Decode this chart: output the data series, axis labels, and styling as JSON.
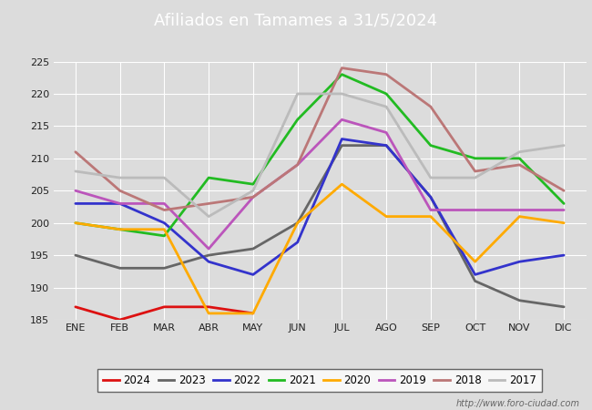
{
  "title": "Afiliados en Tamames a 31/5/2024",
  "months": [
    "ENE",
    "FEB",
    "MAR",
    "ABR",
    "MAY",
    "JUN",
    "JUL",
    "AGO",
    "SEP",
    "OCT",
    "NOV",
    "DIC"
  ],
  "series": {
    "2024": [
      187,
      185,
      187,
      187,
      186,
      null,
      null,
      null,
      null,
      null,
      null,
      null
    ],
    "2023": [
      195,
      193,
      193,
      195,
      196,
      200,
      212,
      212,
      204,
      191,
      188,
      187
    ],
    "2022": [
      203,
      203,
      200,
      194,
      192,
      197,
      213,
      212,
      204,
      192,
      194,
      195
    ],
    "2021": [
      200,
      199,
      198,
      207,
      206,
      216,
      223,
      220,
      212,
      210,
      210,
      203
    ],
    "2020": [
      200,
      199,
      199,
      186,
      186,
      200,
      206,
      201,
      201,
      194,
      201,
      200
    ],
    "2019": [
      205,
      203,
      203,
      196,
      204,
      209,
      216,
      214,
      202,
      202,
      202,
      202
    ],
    "2018": [
      211,
      205,
      202,
      203,
      204,
      209,
      224,
      223,
      218,
      208,
      209,
      205
    ],
    "2017": [
      208,
      207,
      207,
      201,
      205,
      220,
      220,
      218,
      207,
      207,
      211,
      212
    ]
  },
  "colors": {
    "2024": "#dd1111",
    "2023": "#666666",
    "2022": "#3333cc",
    "2021": "#22bb22",
    "2020": "#ffaa00",
    "2019": "#bb55bb",
    "2018": "#bb7777",
    "2017": "#bbbbbb"
  },
  "line_widths": {
    "2024": 2.0,
    "2023": 2.0,
    "2022": 2.0,
    "2021": 2.0,
    "2020": 2.0,
    "2019": 2.0,
    "2018": 2.0,
    "2017": 2.0
  },
  "ylim": [
    185,
    225
  ],
  "yticks": [
    185,
    190,
    195,
    200,
    205,
    210,
    215,
    220,
    225
  ],
  "plot_bg_color": "#dcdcdc",
  "fig_bg_color": "#dcdcdc",
  "grid_color": "#ffffff",
  "title_bg_color": "#4472c4",
  "title_text_color": "#ffffff",
  "title_fontsize": 13,
  "tick_fontsize": 8,
  "legend_fontsize": 8.5,
  "watermark": "http://www.foro-ciudad.com",
  "watermark_fontsize": 7
}
